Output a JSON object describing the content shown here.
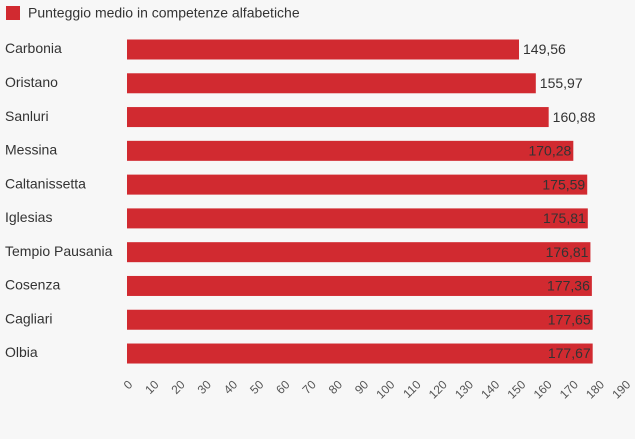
{
  "chart_data": {
    "type": "hbar",
    "categories": [
      "Carbonia",
      "Oristano",
      "Sanluri",
      "Messina",
      "Caltanissetta",
      "Iglesias",
      "Tempio Pausania",
      "Cosenza",
      "Cagliari",
      "Olbia"
    ],
    "series": [
      {
        "name": "Punteggio medio in competenze alfabetiche",
        "color": "#d12a30",
        "values": [
          149.56,
          155.97,
          160.88,
          170.28,
          175.59,
          175.81,
          176.81,
          177.36,
          177.65,
          177.67
        ],
        "value_labels": [
          "149,56",
          "155,97",
          "160,88",
          "170,28",
          "175,59",
          "175,81",
          "176,81",
          "177,36",
          "177,65",
          "177,67"
        ]
      }
    ],
    "xlim": [
      0,
      190
    ],
    "xticks": [
      0,
      10,
      20,
      30,
      40,
      50,
      60,
      70,
      80,
      90,
      100,
      110,
      120,
      130,
      140,
      150,
      160,
      170,
      180,
      190
    ],
    "legend": "top-left",
    "grid": false
  }
}
